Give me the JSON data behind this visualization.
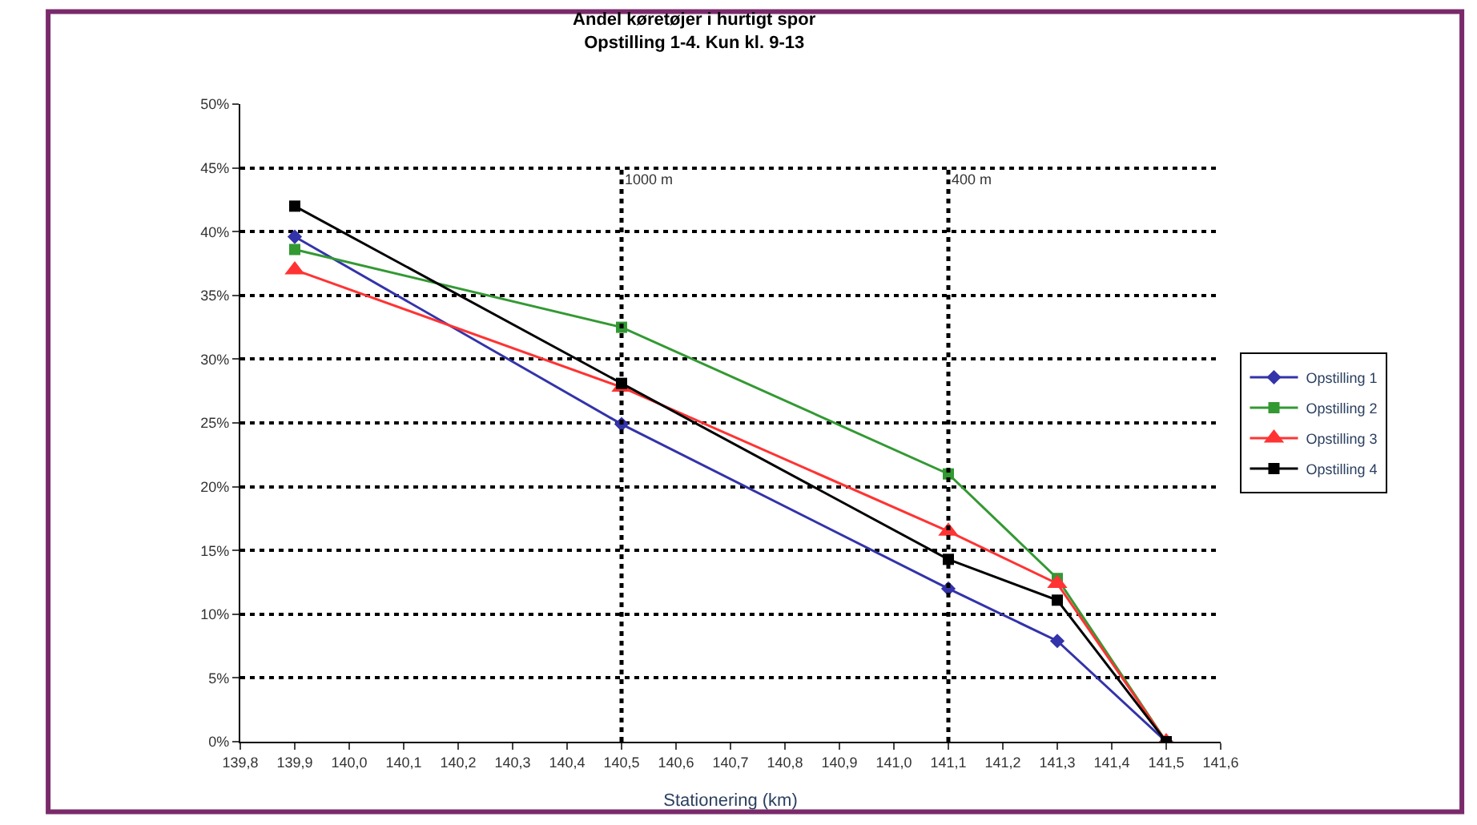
{
  "chart_data": {
    "type": "line",
    "title": "Andel køretøjer i hurtigt spor",
    "subtitle": "Opstilling 1-4. Kun kl. 9-13",
    "xlabel": "Stationering (km)",
    "x": [
      139.9,
      140.5,
      141.1,
      141.3,
      141.5
    ],
    "series": [
      {
        "name": "Opstilling 1",
        "color": "#3333aa",
        "marker": "diamond",
        "values": [
          39.6,
          24.9,
          12.0,
          7.9,
          0
        ]
      },
      {
        "name": "Opstilling 2",
        "color": "#339933",
        "marker": "square",
        "values": [
          38.6,
          32.5,
          21.0,
          12.8,
          0
        ]
      },
      {
        "name": "Opstilling 3",
        "color": "#ff3333",
        "marker": "triangle",
        "values": [
          37.0,
          27.8,
          16.5,
          12.4,
          0
        ]
      },
      {
        "name": "Opstilling 4",
        "color": "#000000",
        "marker": "square",
        "values": [
          42.0,
          28.1,
          14.3,
          11.1,
          0
        ]
      }
    ],
    "xlim": [
      139.8,
      141.6
    ],
    "xticks": [
      {
        "value": 139.8,
        "label": "139,8"
      },
      {
        "value": 139.9,
        "label": "139,9"
      },
      {
        "value": 140.0,
        "label": "140,0"
      },
      {
        "value": 140.1,
        "label": "140,1"
      },
      {
        "value": 140.2,
        "label": "140,2"
      },
      {
        "value": 140.3,
        "label": "140,3"
      },
      {
        "value": 140.4,
        "label": "140,4"
      },
      {
        "value": 140.5,
        "label": "140,5"
      },
      {
        "value": 140.6,
        "label": "140,6"
      },
      {
        "value": 140.7,
        "label": "140,7"
      },
      {
        "value": 140.8,
        "label": "140,8"
      },
      {
        "value": 140.9,
        "label": "140,9"
      },
      {
        "value": 141.0,
        "label": "141,0"
      },
      {
        "value": 141.1,
        "label": "141,1"
      },
      {
        "value": 141.2,
        "label": "141,2"
      },
      {
        "value": 141.3,
        "label": "141,3"
      },
      {
        "value": 141.4,
        "label": "141,4"
      },
      {
        "value": 141.5,
        "label": "141,5"
      },
      {
        "value": 141.6,
        "label": "141,6"
      }
    ],
    "ylim": [
      0,
      50
    ],
    "yticks": [
      {
        "value": 0,
        "label": "0%"
      },
      {
        "value": 5,
        "label": "5%"
      },
      {
        "value": 10,
        "label": "10%"
      },
      {
        "value": 15,
        "label": "15%"
      },
      {
        "value": 20,
        "label": "20%"
      },
      {
        "value": 25,
        "label": "25%"
      },
      {
        "value": 30,
        "label": "30%"
      },
      {
        "value": 35,
        "label": "35%"
      },
      {
        "value": 40,
        "label": "40%"
      },
      {
        "value": 45,
        "label": "45%"
      },
      {
        "value": 50,
        "label": "50%"
      }
    ],
    "ref_lines": [
      {
        "axis": "x",
        "value": 140.5,
        "label": "1000 m",
        "color": "#000000",
        "line_style": "dotted"
      },
      {
        "axis": "x",
        "value": 141.1,
        "label": "400 m",
        "color": "#000000",
        "line_style": "dotted"
      }
    ],
    "grid": "y",
    "legend": "right",
    "line_style": "solid"
  }
}
